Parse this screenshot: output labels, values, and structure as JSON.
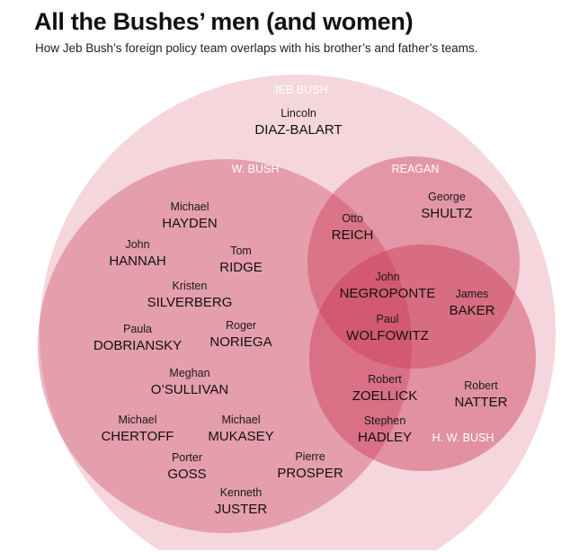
{
  "header": {
    "title": "All the Bushes’ men (and women)",
    "subtitle": "How Jeb Bush’s foreign policy team overlaps with his brother’s and father’s teams."
  },
  "colors": {
    "circle_fill": "#c8324f",
    "label_white": "#ffffff"
  },
  "sets": {
    "jeb": "JEB BUSH",
    "wbush": "W. BUSH",
    "reagan": "REAGAN",
    "hwbush": "H. W. BUSH"
  },
  "people": [
    {
      "first": "Lincoln",
      "last": "DIAZ-BALART"
    },
    {
      "first": "Michael",
      "last": "HAYDEN"
    },
    {
      "first": "John",
      "last": "HANNAH"
    },
    {
      "first": "Tom",
      "last": "RIDGE"
    },
    {
      "first": "Kristen",
      "last": "SILVERBERG"
    },
    {
      "first": "Paula",
      "last": "DOBRIANSKY"
    },
    {
      "first": "Roger",
      "last": "NORIEGA"
    },
    {
      "first": "Meghan",
      "last": "O’SULLIVAN"
    },
    {
      "first": "Michael",
      "last": "CHERTOFF"
    },
    {
      "first": "Michael",
      "last": "MUKASEY"
    },
    {
      "first": "Porter",
      "last": "GOSS"
    },
    {
      "first": "Pierre",
      "last": "PROSPER"
    },
    {
      "first": "Kenneth",
      "last": "JUSTER"
    },
    {
      "first": "George",
      "last": "SHULTZ"
    },
    {
      "first": "Otto",
      "last": "REICH"
    },
    {
      "first": "John",
      "last": "NEGROPONTE"
    },
    {
      "first": "James",
      "last": "BAKER"
    },
    {
      "first": "Paul",
      "last": "WOLFOWITZ"
    },
    {
      "first": "Robert",
      "last": "ZOELLICK"
    },
    {
      "first": "Robert",
      "last": "NATTER"
    },
    {
      "first": "Stephen",
      "last": "HADLEY"
    }
  ]
}
